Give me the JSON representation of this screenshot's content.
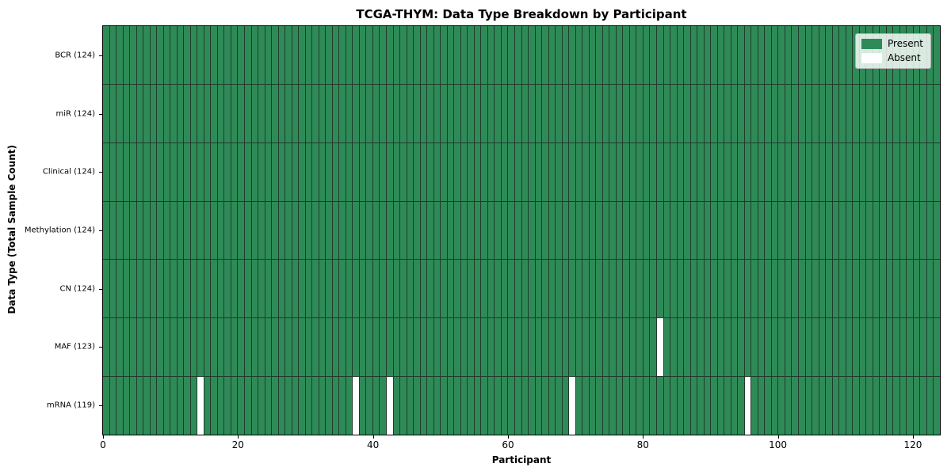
{
  "chart_data": {
    "type": "heatmap",
    "title": "TCGA-THYM: Data Type Breakdown by Participant",
    "xlabel": "Participant",
    "ylabel": "Data Type (Total Sample Count)",
    "n_participants": 124,
    "x_max": 124,
    "x_ticks": [
      0,
      20,
      40,
      60,
      80,
      100,
      120
    ],
    "rows": [
      {
        "label": "BCR (124)",
        "total_present": 124,
        "absent_indices": []
      },
      {
        "label": "miR (124)",
        "total_present": 124,
        "absent_indices": []
      },
      {
        "label": "Clinical (124)",
        "total_present": 124,
        "absent_indices": []
      },
      {
        "label": "Methylation (124)",
        "total_present": 124,
        "absent_indices": []
      },
      {
        "label": "CN (124)",
        "total_present": 124,
        "absent_indices": []
      },
      {
        "label": "MAF (123)",
        "total_present": 123,
        "absent_indices": [
          82
        ]
      },
      {
        "label": "mRNA (119)",
        "total_present": 119,
        "absent_indices": [
          14,
          37,
          42,
          69,
          95
        ]
      }
    ],
    "legend": [
      {
        "label": "Present",
        "color": "#2e8b57"
      },
      {
        "label": "Absent",
        "color": "#ffffff"
      }
    ],
    "colors": {
      "present": "#2e8b57",
      "absent": "#ffffff",
      "grid_line": "#1f3b2c",
      "spine": "#000000"
    },
    "legend_position": "upper right",
    "grid": "cell-borders-on"
  }
}
